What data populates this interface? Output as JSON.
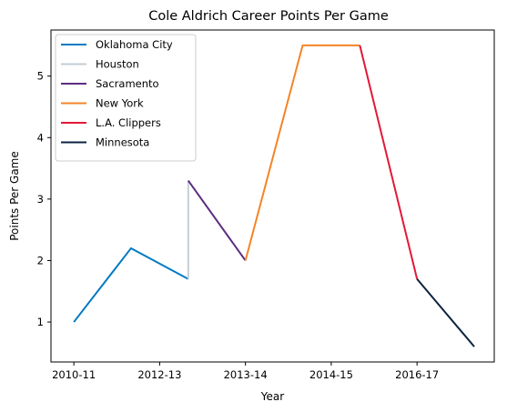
{
  "chart_data": {
    "type": "line",
    "title": "Cole Aldrich Career Points Per Game",
    "xlabel": "Year",
    "ylabel": "Points Per Game",
    "x_tick_positions": [
      0,
      1.5,
      3,
      4.5,
      6
    ],
    "x_tick_labels": [
      "2010-11",
      "2012-13",
      "2013-14",
      "2014-15",
      "2016-17"
    ],
    "xlim": [
      -0.4,
      7.35
    ],
    "ylim": [
      0.35,
      5.75
    ],
    "y_ticks": [
      1,
      2,
      3,
      4,
      5
    ],
    "grid": false,
    "legend_position": "top-left",
    "series": [
      {
        "name": "Oklahoma City",
        "color": "#007ac1",
        "x": [
          0,
          1,
          2
        ],
        "y": [
          1.0,
          2.2,
          1.7
        ]
      },
      {
        "name": "Houston",
        "color": "#c4ced4",
        "x": [
          2,
          2
        ],
        "y": [
          1.7,
          3.3
        ]
      },
      {
        "name": "Sacramento",
        "color": "#5a2d81",
        "x": [
          2,
          3
        ],
        "y": [
          3.3,
          2.0
        ]
      },
      {
        "name": "New York",
        "color": "#f58426",
        "x": [
          3,
          4,
          5
        ],
        "y": [
          2.0,
          5.5,
          5.5
        ]
      },
      {
        "name": "L.A. Clippers",
        "color": "#e31837",
        "x": [
          5,
          6
        ],
        "y": [
          5.5,
          1.7
        ]
      },
      {
        "name": "Minnesota",
        "color": "#0c2340",
        "x": [
          6,
          7
        ],
        "y": [
          1.7,
          0.6
        ]
      }
    ]
  }
}
